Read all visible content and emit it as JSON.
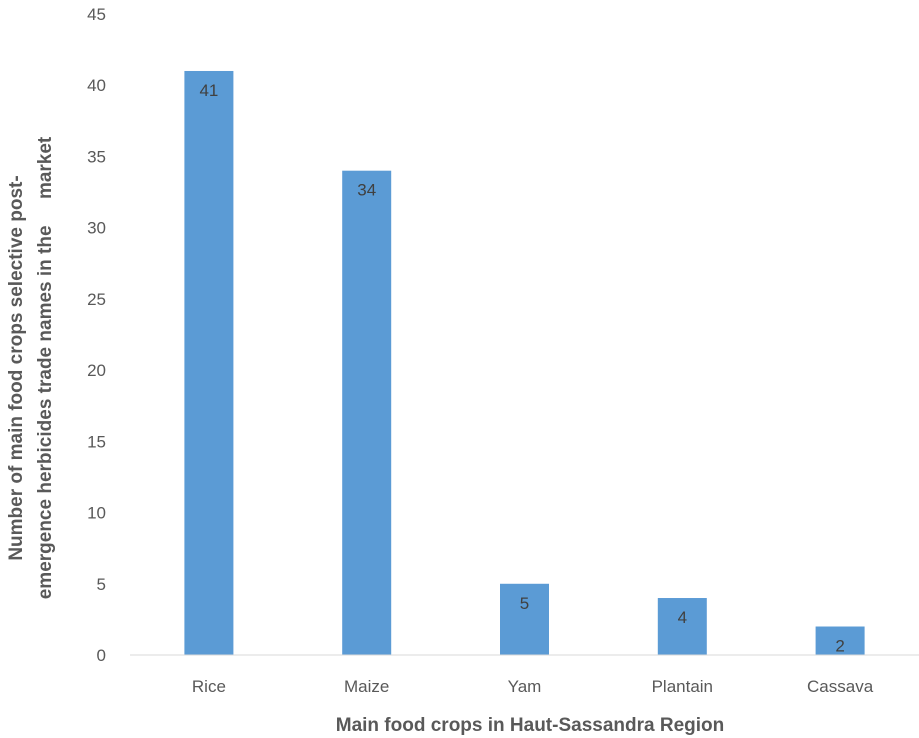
{
  "chart_data": {
    "type": "bar",
    "categories": [
      "Rice",
      "Maize",
      "Yam",
      "Plantain",
      "Cassava"
    ],
    "values": [
      41,
      34,
      5,
      4,
      2
    ],
    "data_labels": [
      "41",
      "34",
      "5",
      "4",
      "2"
    ],
    "title": "",
    "xlabel": "Main food crops in Haut-Sassandra Region",
    "ylabel_line1": "Number of main food crops selective post-",
    "ylabel_line2": "emergence herbicides trade names in the     market",
    "ylim": [
      0,
      45
    ],
    "ytick_labels": [
      "0",
      "5",
      "10",
      "15",
      "20",
      "25",
      "30",
      "35",
      "40",
      "45"
    ],
    "bar_color": "#5B9BD5",
    "grid": false,
    "legend": "none"
  }
}
